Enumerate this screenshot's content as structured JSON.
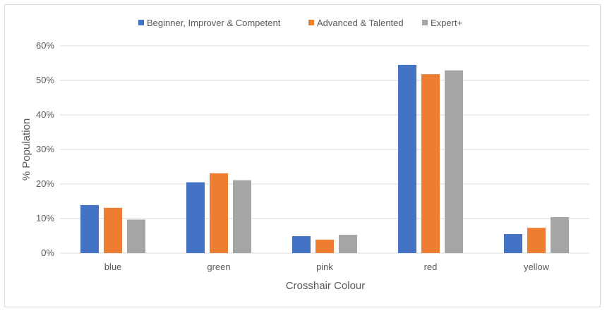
{
  "chart_data": {
    "type": "bar",
    "title": "",
    "xlabel": "Crosshair Colour",
    "ylabel": "% Population",
    "ylim": [
      0,
      60
    ],
    "yticks": [
      "0%",
      "10%",
      "20%",
      "30%",
      "40%",
      "50%",
      "60%"
    ],
    "grid": true,
    "legend": "top",
    "categories": [
      "blue",
      "green",
      "pink",
      "red",
      "yellow"
    ],
    "series": [
      {
        "name": "Beginner, Improver & Competent",
        "color": "#4472c4",
        "values": [
          13.9,
          20.5,
          4.9,
          54.5,
          5.5
        ]
      },
      {
        "name": "Advanced & Talented",
        "color": "#ed7d31",
        "values": [
          13.1,
          23.1,
          3.9,
          51.8,
          7.3
        ]
      },
      {
        "name": "Expert+",
        "color": "#a5a5a5",
        "values": [
          9.7,
          21.1,
          5.3,
          52.9,
          10.4
        ]
      }
    ]
  }
}
